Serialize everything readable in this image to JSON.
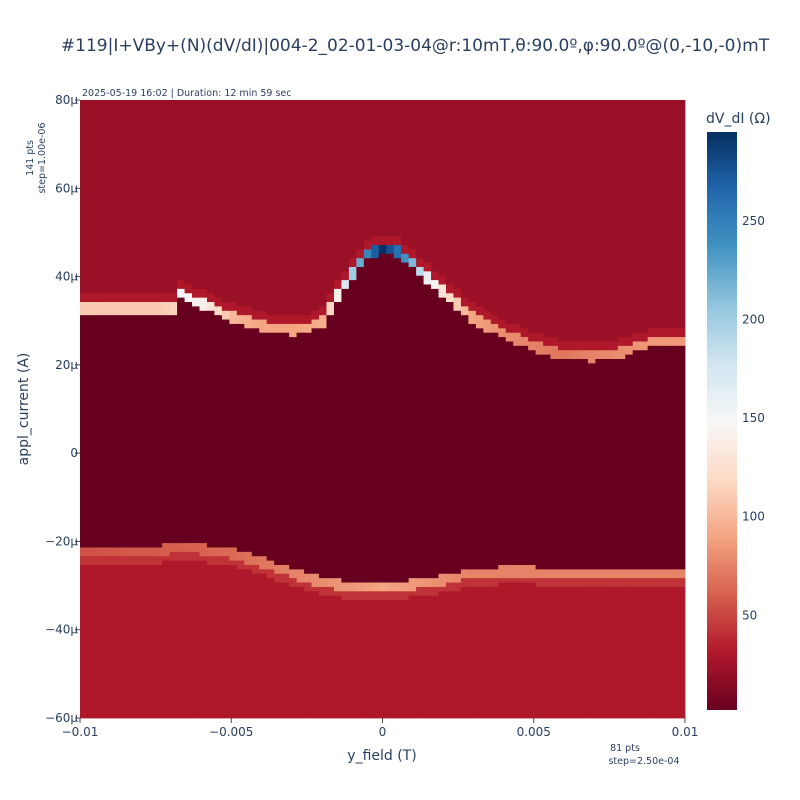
{
  "chart_data": {
    "type": "heatmap",
    "title": "#119|I+VBy+(N)(dV/dI)|004-2_02-01-03-04@r:10mT,θ:90.0º,φ:90.0º@(0,-10,-0)mT",
    "xlabel": "y_field (T)",
    "ylabel": "appl_current (A)",
    "colorbar_title": "dV_dI (Ω)",
    "colorscale": "RdBu",
    "xlim": [
      -0.01,
      0.01
    ],
    "ylim": [
      -6e-05,
      8e-05
    ],
    "x_ticks": [
      {
        "value": -0.01,
        "label": "−0.01"
      },
      {
        "value": -0.005,
        "label": "−0.005"
      },
      {
        "value": 0,
        "label": "0"
      },
      {
        "value": 0.005,
        "label": "0.005"
      },
      {
        "value": 0.01,
        "label": "0.01"
      }
    ],
    "y_ticks": [
      {
        "value": -6e-05,
        "label": "−60μ"
      },
      {
        "value": -4e-05,
        "label": "−40μ"
      },
      {
        "value": -2e-05,
        "label": "−20μ"
      },
      {
        "value": 0,
        "label": "0"
      },
      {
        "value": 2e-05,
        "label": "20μ"
      },
      {
        "value": 4e-05,
        "label": "40μ"
      },
      {
        "value": 6e-05,
        "label": "60μ"
      },
      {
        "value": 8e-05,
        "label": "80μ"
      }
    ],
    "colorbar_range": [
      2,
      295
    ],
    "colorbar_ticks": [
      {
        "value": 50,
        "label": "50"
      },
      {
        "value": 100,
        "label": "100"
      },
      {
        "value": 150,
        "label": "150"
      },
      {
        "value": 200,
        "label": "200"
      },
      {
        "value": 250,
        "label": "250"
      }
    ],
    "grid": {
      "nx": 81,
      "x_start": -0.01,
      "x_step": 0.00025,
      "ny": 141,
      "y_start": -6e-05,
      "y_step": 1e-06
    },
    "levels": {
      "superconducting": 2,
      "normal_upper": 22,
      "normal_lower": 30
    },
    "upper_switching_current": [
      [
        -0.01,
        3.3e-05
      ],
      [
        -0.0075,
        3.3e-05
      ],
      [
        -0.007,
        3.3e-05
      ],
      [
        -0.00675,
        3.65e-05
      ],
      [
        -0.006,
        3.4e-05
      ],
      [
        -0.005,
        3.1e-05
      ],
      [
        -0.0045,
        3e-05
      ],
      [
        -0.004,
        2.9e-05
      ],
      [
        -0.003,
        2.8e-05
      ],
      [
        -0.0025,
        2.85e-05
      ],
      [
        -0.002,
        3e-05
      ],
      [
        -0.0015,
        3.6e-05
      ],
      [
        -0.001,
        4.1e-05
      ],
      [
        -0.0005,
        4.55e-05
      ],
      [
        0,
        4.65e-05
      ],
      [
        0.0005,
        4.6e-05
      ],
      [
        0.001,
        4.35e-05
      ],
      [
        0.0015,
        4e-05
      ],
      [
        0.002,
        3.7e-05
      ],
      [
        0.0025,
        3.4e-05
      ],
      [
        0.003,
        3.1e-05
      ],
      [
        0.0035,
        2.9e-05
      ],
      [
        0.004,
        2.75e-05
      ],
      [
        0.005,
        2.45e-05
      ],
      [
        0.006,
        2.25e-05
      ],
      [
        0.007,
        2.2e-05
      ],
      [
        0.008,
        2.3e-05
      ],
      [
        0.009,
        2.55e-05
      ],
      [
        0.01,
        2.55e-05
      ]
    ],
    "upper_switching_peak": [
      [
        -0.01,
        110
      ],
      [
        -0.0075,
        110
      ],
      [
        -0.007,
        115
      ],
      [
        -0.00675,
        150
      ],
      [
        -0.006,
        140
      ],
      [
        -0.005,
        100
      ],
      [
        -0.004,
        90
      ],
      [
        -0.003,
        90
      ],
      [
        -0.002,
        95
      ],
      [
        -0.0015,
        140
      ],
      [
        -0.001,
        200
      ],
      [
        -0.0005,
        245
      ],
      [
        0,
        295
      ],
      [
        0.0005,
        260
      ],
      [
        0.001,
        215
      ],
      [
        0.0015,
        160
      ],
      [
        0.002,
        130
      ],
      [
        0.0025,
        110
      ],
      [
        0.003,
        90
      ],
      [
        0.004,
        80
      ],
      [
        0.005,
        75
      ],
      [
        0.006,
        70
      ],
      [
        0.007,
        75
      ],
      [
        0.008,
        80
      ],
      [
        0.009,
        85
      ],
      [
        0.01,
        85
      ]
    ],
    "lower_switching_current": [
      [
        -0.01,
        -2.25e-05
      ],
      [
        -0.0075,
        -2.25e-05
      ],
      [
        -0.007,
        -2.15e-05
      ],
      [
        -0.006,
        -2.2e-05
      ],
      [
        -0.005,
        -2.3e-05
      ],
      [
        -0.004,
        -2.5e-05
      ],
      [
        -0.003,
        -2.75e-05
      ],
      [
        -0.002,
        -2.95e-05
      ],
      [
        -0.001,
        -3.05e-05
      ],
      [
        0,
        -3.05e-05
      ],
      [
        0.001,
        -3e-05
      ],
      [
        0.002,
        -2.9e-05
      ],
      [
        0.003,
        -2.75e-05
      ],
      [
        0.004,
        -2.7e-05
      ],
      [
        0.005,
        -2.7e-05
      ],
      [
        0.006,
        -2.75e-05
      ],
      [
        0.007,
        -2.75e-05
      ],
      [
        0.008,
        -2.75e-05
      ],
      [
        0.009,
        -2.75e-05
      ],
      [
        0.01,
        -2.75e-05
      ]
    ],
    "lower_switching_peak": [
      [
        -0.01,
        55
      ],
      [
        -0.007,
        60
      ],
      [
        -0.005,
        65
      ],
      [
        -0.003,
        75
      ],
      [
        -0.001,
        85
      ],
      [
        0,
        90
      ],
      [
        0.001,
        85
      ],
      [
        0.003,
        75
      ],
      [
        0.005,
        75
      ],
      [
        0.007,
        75
      ],
      [
        0.01,
        75
      ]
    ],
    "annotations": {
      "top_left": "2025-05-19 16:02 | Duration: 12 min 59 sec",
      "y_points": "141 pts",
      "y_step": "step=1.00e-06",
      "x_points": "81 pts",
      "x_step": "step=2.50e-04"
    }
  }
}
